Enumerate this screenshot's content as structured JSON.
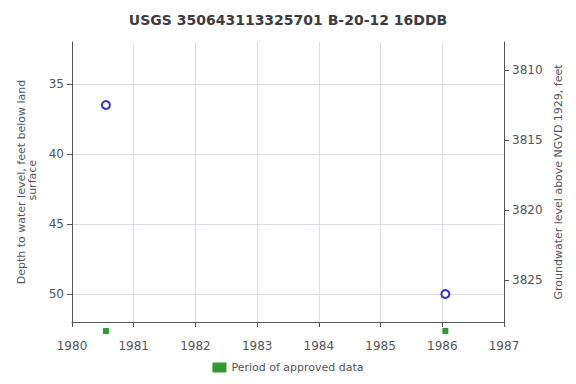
{
  "chart_data": {
    "type": "scatter",
    "title": "USGS 350643113325701 B-20-12 16DDB",
    "ylabel": "Depth to water level, feet below land\n surface",
    "y2label": "Groundwater level above NGVD 1929, feet",
    "xlim": [
      1980,
      1987
    ],
    "xticks": [
      1980,
      1981,
      1982,
      1983,
      1984,
      1985,
      1986,
      1987
    ],
    "ylim": [
      52,
      32
    ],
    "yticks": [
      35,
      40,
      45,
      50
    ],
    "y2lim": [
      3828,
      3808
    ],
    "y2ticks": [
      3810,
      3815,
      3820,
      3825
    ],
    "grid": true,
    "legend": "bottom",
    "series": [
      {
        "color": "#0000cc",
        "marker": "circle",
        "x": [
          1980.55,
          1986.05
        ],
        "values": [
          36.5,
          50.0
        ]
      },
      {
        "name": "Period of approved data",
        "color": "#008000",
        "marker": "square",
        "x": [
          1980.55,
          1986.05
        ]
      }
    ]
  }
}
